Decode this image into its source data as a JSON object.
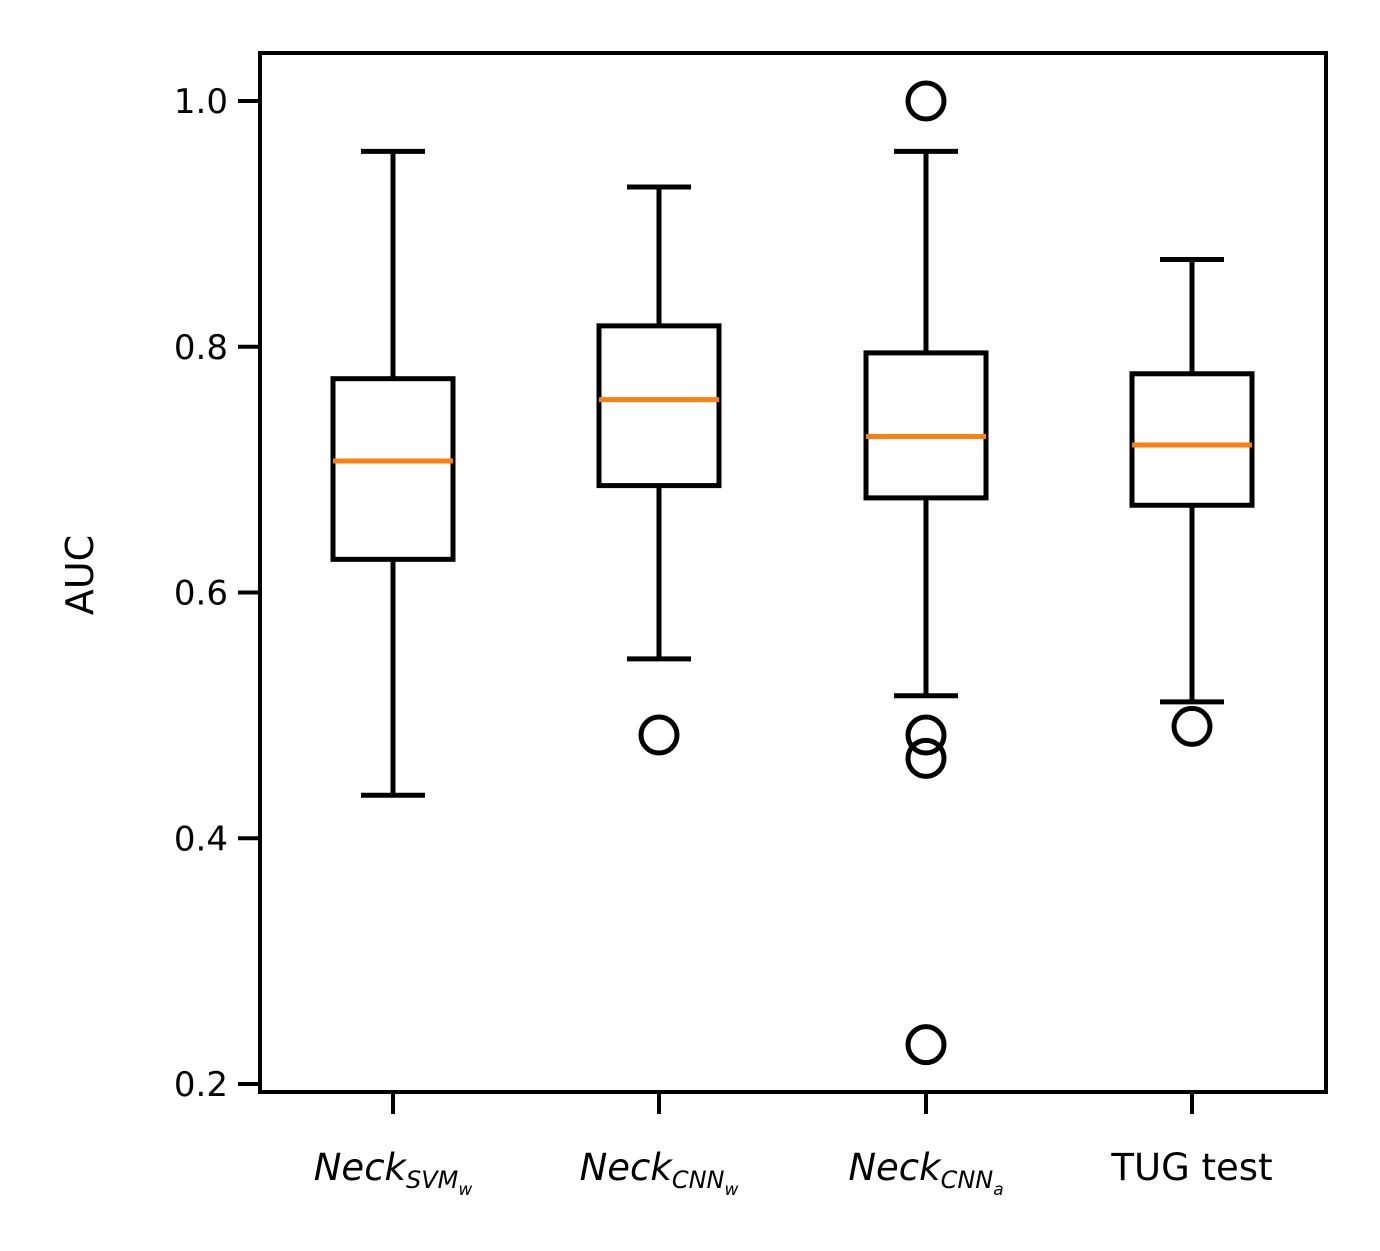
{
  "chart_data": {
    "type": "box",
    "ylabel": "AUC",
    "ylim": [
      0.18,
      1.04
    ],
    "yticks": [
      "0.2",
      "0.4",
      "0.6",
      "0.8",
      "1.0"
    ],
    "ytick_values": [
      0.2,
      0.4,
      0.6,
      0.8,
      1.0
    ],
    "colors": {
      "box": "#000000",
      "median": "#ff7f0e"
    },
    "categories": [
      {
        "label": "Neck",
        "sub": "SVM",
        "subsub": "w",
        "italic": true
      },
      {
        "label": "Neck",
        "sub": "CNN",
        "subsub": "w",
        "italic": true
      },
      {
        "label": "Neck",
        "sub": "CNN",
        "subsub": "a",
        "italic": true
      },
      {
        "label": "TUG test",
        "sub": "",
        "subsub": "",
        "italic": false
      }
    ],
    "boxes": [
      {
        "whisker_low": 0.435,
        "q1": 0.627,
        "median": 0.707,
        "q3": 0.774,
        "whisker_high": 0.959,
        "outliers": []
      },
      {
        "whisker_low": 0.546,
        "q1": 0.687,
        "median": 0.757,
        "q3": 0.817,
        "whisker_high": 0.93,
        "outliers": [
          0.484
        ]
      },
      {
        "whisker_low": 0.516,
        "q1": 0.677,
        "median": 0.727,
        "q3": 0.795,
        "whisker_high": 0.959,
        "outliers": [
          1.0,
          0.484,
          0.465,
          0.232
        ]
      },
      {
        "whisker_low": 0.511,
        "q1": 0.671,
        "median": 0.72,
        "q3": 0.778,
        "whisker_high": 0.871,
        "outliers": [
          0.491
        ]
      }
    ]
  }
}
